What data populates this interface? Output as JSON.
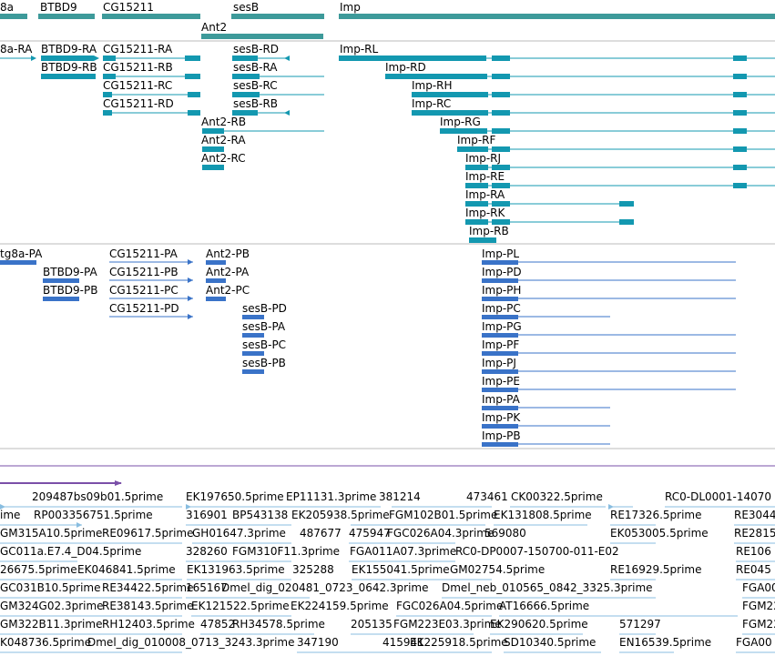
{
  "gene_track": {
    "genes": [
      "8a",
      "BTBD9",
      "CG15211",
      "sesB",
      "Imp",
      "Ant2"
    ]
  },
  "transcript_track_1": {
    "labels": [
      "8a-RA",
      "BTBD9-RA",
      "BTBD9-RB",
      "CG15211-RA",
      "CG15211-RB",
      "CG15211-RC",
      "CG15211-RD",
      "sesB-RD",
      "sesB-RA",
      "sesB-RC",
      "sesB-RB",
      "Ant2-RB",
      "Ant2-RA",
      "Ant2-RC",
      "Imp-RL",
      "Imp-RD",
      "Imp-RH",
      "Imp-RC",
      "Imp-RG",
      "Imp-RF",
      "Imp-RJ",
      "Imp-RE",
      "Imp-RA",
      "Imp-RK",
      "Imp-RB"
    ]
  },
  "transcript_track_2": {
    "labels": [
      "tg8a-PA",
      "BTBD9-PA",
      "BTBD9-PB",
      "CG15211-PA",
      "CG15211-PB",
      "CG15211-PC",
      "CG15211-PD",
      "Ant2-PB",
      "Ant2-PA",
      "Ant2-PC",
      "sesB-PD",
      "sesB-PA",
      "sesB-PC",
      "sesB-PB",
      "Imp-PL",
      "Imp-PD",
      "Imp-PH",
      "Imp-PC",
      "Imp-PG",
      "Imp-PF",
      "Imp-PJ",
      "Imp-PE",
      "Imp-PA",
      "Imp-PK",
      "Imp-PB"
    ]
  },
  "est_track": {
    "labels": [
      "209487bs09b01.5prime",
      "EK197650.5prime",
      "EP11131.3prime",
      "381214",
      "473461",
      "CK00322.5prime",
      "RC0-DL0001-14070",
      "ime",
      "RP003356751.5prime",
      "316901",
      "BP543138",
      "EK205938.5prime",
      "FGM102B01.5prime",
      "EK131808.5prime",
      "RE17326.5prime",
      "RE3044",
      "GM315A10.5prime",
      "RE09617.5prime",
      "GH01647.3prime",
      "487677",
      "475947",
      "FGC026A04.3prime",
      "569080",
      "EK053005.5prime",
      "RE2815",
      "GC011a.E7.4_D04.5prime",
      "328260",
      "FGM310F11.3prime",
      "FGA011A07.3prime",
      "RC0-DP0007-150700-011-E02",
      "RE106",
      "26675.5prime",
      "EK046841.5prime",
      "EK131963.5prime",
      "325288",
      "EK155041.5prime",
      "GM02754.5prime",
      "RE16929.5prime",
      "RE045",
      "GC031B10.5prime",
      "RE34422.5prime",
      "165167",
      "Dmel_dig_020481_0723_0642.3prime",
      "Dmel_neb_010565_0842_3325.3prime",
      "FGA00",
      "GM324G02.3prime",
      "RE38143.5prime",
      "EK121522.5prime",
      "EK224159.5prime",
      "FGC026A04.5prime",
      "AT16666.5prime",
      "FGM22",
      "GM322B11.3prime",
      "RH12403.5prime",
      "47852",
      "RH34578.5prime",
      "205135",
      "FGM223E03.3prime",
      "EK290620.5prime",
      "571297",
      "FGM22",
      "K048736.5prime",
      "Dmel_dig_010008_0713_3243.3prime",
      "347190",
      "415941",
      "EK225918.5prime",
      "SD10340.5prime",
      "EN16539.5prime",
      "FGA00"
    ]
  },
  "colors": {
    "gene": "#3d9a9a",
    "transcript": "#1398b0",
    "protein": "#3a73c8",
    "est": "#88bde0",
    "separator": "#bbbbbb",
    "overview": "#7a4fa8"
  }
}
